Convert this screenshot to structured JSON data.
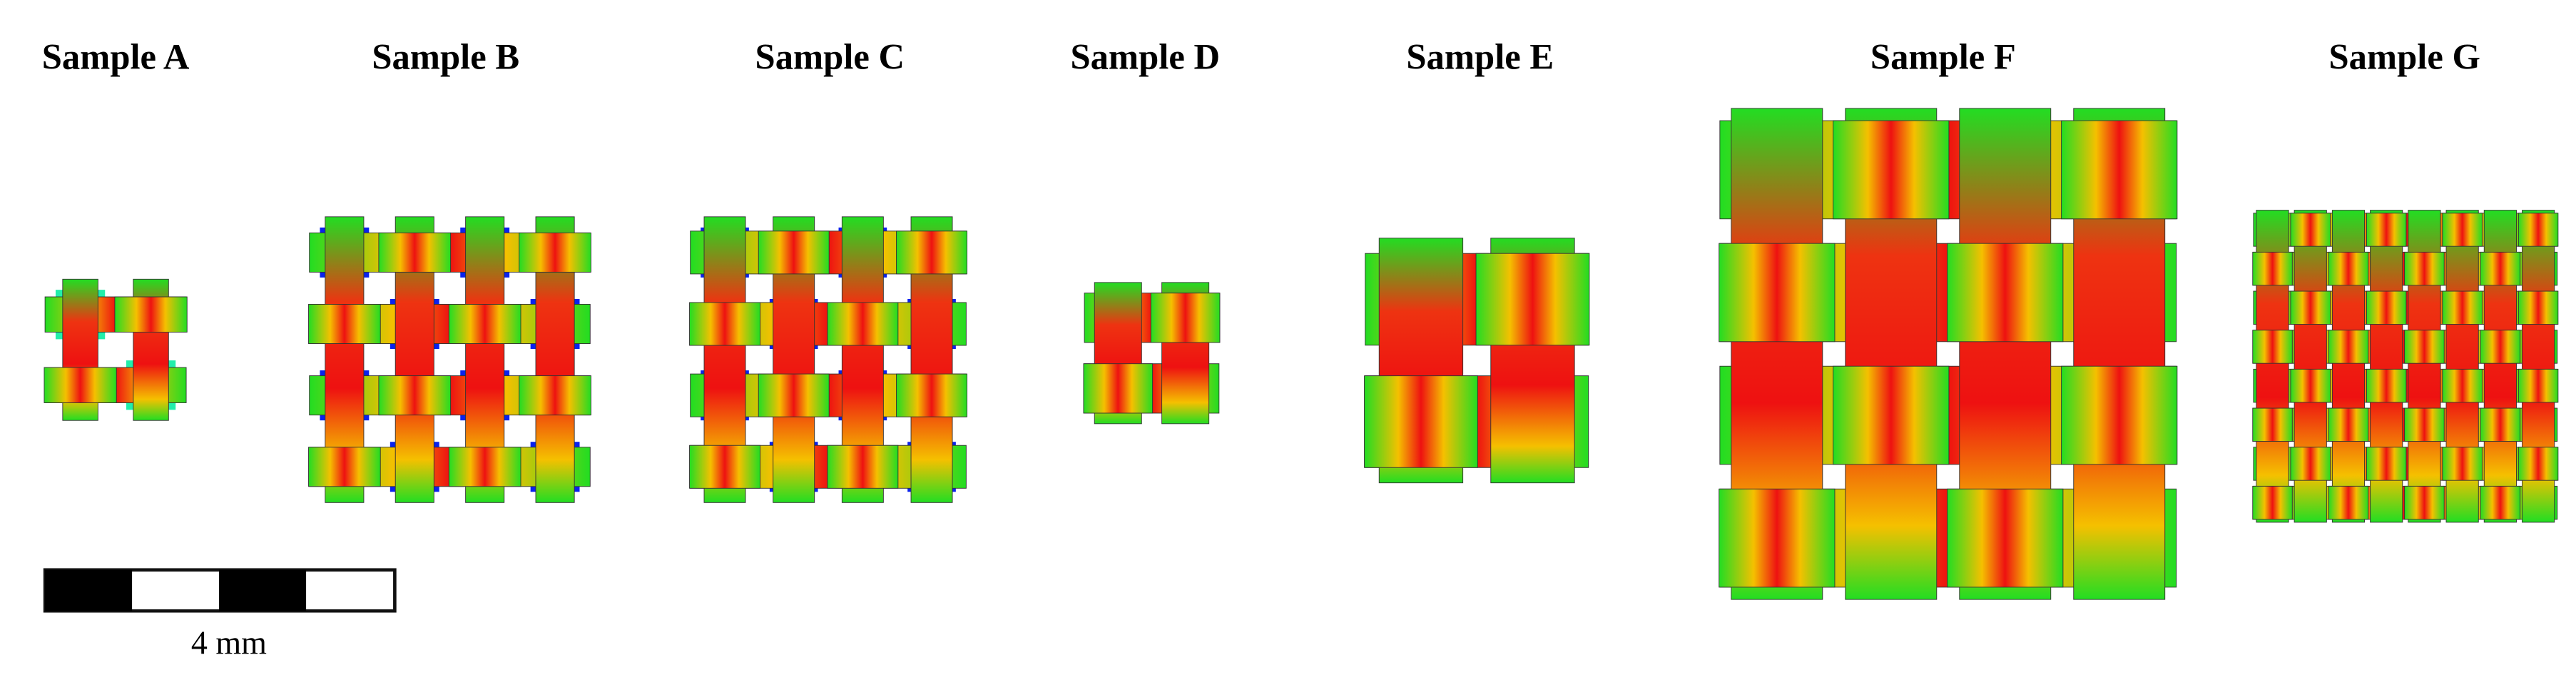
{
  "samples": [
    {
      "label": "Sample A"
    },
    {
      "label": "Sample B"
    },
    {
      "label": "Sample C"
    },
    {
      "label": "Sample D"
    },
    {
      "label": "Sample E"
    },
    {
      "label": "Sample F"
    },
    {
      "label": "Sample G"
    }
  ],
  "scale_bar": {
    "label": "4 mm"
  }
}
